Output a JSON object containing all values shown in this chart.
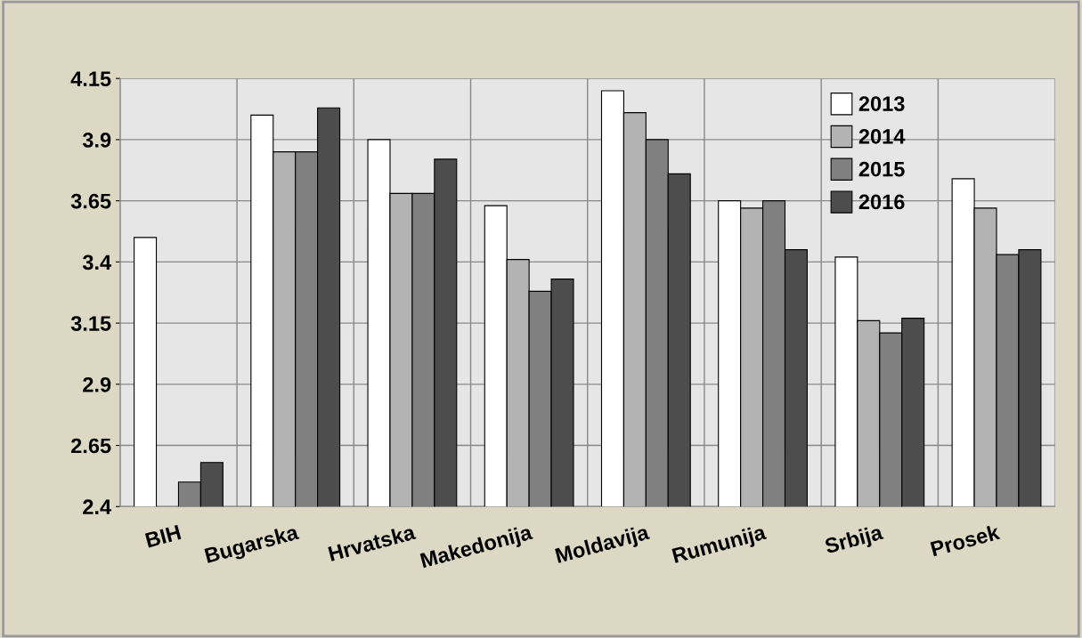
{
  "chart_data": {
    "type": "bar",
    "categories": [
      "BIH",
      "Bugarska",
      "Hrvatska",
      "Makedonija",
      "Moldavija",
      "Rumunija",
      "Srbija",
      "Prosek"
    ],
    "series": [
      {
        "name": "2013",
        "color": "#ffffff",
        "values": [
          3.5,
          4.0,
          3.9,
          3.63,
          4.1,
          3.65,
          3.42,
          3.74
        ]
      },
      {
        "name": "2014",
        "color": "#b3b3b3",
        "values": [
          null,
          3.85,
          3.68,
          3.41,
          4.01,
          3.62,
          3.16,
          3.62
        ]
      },
      {
        "name": "2015",
        "color": "#808080",
        "values": [
          2.5,
          3.85,
          3.68,
          3.28,
          3.9,
          3.65,
          3.11,
          3.43
        ]
      },
      {
        "name": "2016",
        "color": "#4d4d4d",
        "values": [
          2.58,
          4.03,
          3.82,
          3.33,
          3.76,
          3.45,
          3.17,
          3.45
        ]
      }
    ],
    "ylim": [
      2.4,
      4.15
    ],
    "yticks": [
      2.4,
      2.65,
      2.9,
      3.15,
      3.4,
      3.65,
      3.9,
      4.15
    ],
    "grid": true,
    "legend": "top right"
  }
}
